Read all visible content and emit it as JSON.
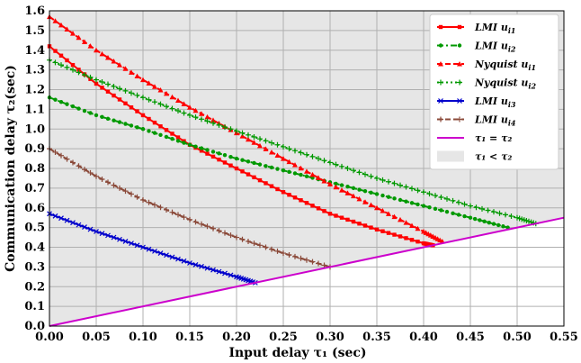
{
  "chart_data": {
    "type": "line",
    "xlabel": "Input delay τ₁ (sec)",
    "ylabel": "Communication delay τ₂(sec)",
    "xlim": [
      0,
      0.55
    ],
    "ylim": [
      0,
      1.6
    ],
    "xticks": [
      "0.00",
      "0.05",
      "0.10",
      "0.15",
      "0.20",
      "0.25",
      "0.30",
      "0.35",
      "0.40",
      "0.45",
      "0.50",
      "0.55"
    ],
    "yticks": [
      "0.0",
      "0.1",
      "0.2",
      "0.3",
      "0.4",
      "0.5",
      "0.6",
      "0.7",
      "0.8",
      "0.9",
      "1.0",
      "1.1",
      "1.2",
      "1.3",
      "1.4",
      "1.5",
      "1.6"
    ],
    "grid": true,
    "legend_position": "top-right",
    "shaded_region": {
      "label": "τ₁ < τ₂",
      "color": "#e6e6e6"
    },
    "series": [
      {
        "name": "LMI u_i1",
        "color": "#ff0000",
        "style": "solid",
        "marker": "square",
        "x": [
          0.0,
          0.05,
          0.1,
          0.15,
          0.2,
          0.25,
          0.3,
          0.35,
          0.4,
          0.41
        ],
        "y": [
          1.42,
          1.23,
          1.07,
          0.92,
          0.8,
          0.68,
          0.57,
          0.49,
          0.42,
          0.41
        ]
      },
      {
        "name": "LMI u_i2",
        "color": "#009900",
        "style": "dashdot",
        "marker": "dot",
        "x": [
          0.0,
          0.05,
          0.1,
          0.15,
          0.2,
          0.25,
          0.3,
          0.35,
          0.4,
          0.45,
          0.49
        ],
        "y": [
          1.16,
          1.07,
          1.0,
          0.92,
          0.85,
          0.79,
          0.73,
          0.67,
          0.61,
          0.55,
          0.5
        ]
      },
      {
        "name": "Nyquist u_i1",
        "color": "#ff0000",
        "style": "dashed",
        "marker": "triangle",
        "x": [
          0.0,
          0.05,
          0.1,
          0.15,
          0.2,
          0.25,
          0.3,
          0.35,
          0.4,
          0.42
        ],
        "y": [
          1.57,
          1.4,
          1.25,
          1.11,
          0.98,
          0.85,
          0.72,
          0.6,
          0.48,
          0.43
        ]
      },
      {
        "name": "Nyquist u_i2",
        "color": "#009900",
        "style": "dotted",
        "marker": "plus",
        "x": [
          0.0,
          0.05,
          0.1,
          0.15,
          0.2,
          0.25,
          0.3,
          0.35,
          0.4,
          0.45,
          0.5,
          0.52
        ],
        "y": [
          1.35,
          1.25,
          1.16,
          1.07,
          0.99,
          0.91,
          0.83,
          0.75,
          0.68,
          0.61,
          0.55,
          0.52
        ]
      },
      {
        "name": "LMI u_i3",
        "color": "#0000cc",
        "style": "solid",
        "marker": "x",
        "x": [
          0.0,
          0.05,
          0.1,
          0.15,
          0.2,
          0.22
        ],
        "y": [
          0.57,
          0.48,
          0.4,
          0.32,
          0.25,
          0.22
        ]
      },
      {
        "name": "LMI u_i4",
        "color": "#8b4a3a",
        "style": "dashed",
        "marker": "plus",
        "x": [
          0.0,
          0.05,
          0.1,
          0.15,
          0.2,
          0.25,
          0.3
        ],
        "y": [
          0.9,
          0.76,
          0.64,
          0.54,
          0.45,
          0.37,
          0.3
        ]
      },
      {
        "name": "τ₁ = τ₂",
        "color": "#cc00cc",
        "style": "solid",
        "marker": "none",
        "x": [
          0.0,
          0.55
        ],
        "y": [
          0.0,
          0.55
        ]
      }
    ],
    "legend": [
      {
        "main": "LMI ",
        "sub_var": "u",
        "sub": "i1"
      },
      {
        "main": "LMI ",
        "sub_var": "u",
        "sub": "i2"
      },
      {
        "main": "Nyquist ",
        "sub_var": "u",
        "sub": "i1"
      },
      {
        "main": "Nyquist ",
        "sub_var": "u",
        "sub": "i2"
      },
      {
        "main": "LMI ",
        "sub_var": "u",
        "sub": "i3"
      },
      {
        "main": "LMI ",
        "sub_var": "u",
        "sub": "i4"
      },
      {
        "main": "τ₁ = τ₂",
        "sub_var": "",
        "sub": ""
      },
      {
        "main": "τ₁ < τ₂",
        "sub_var": "",
        "sub": ""
      }
    ]
  }
}
